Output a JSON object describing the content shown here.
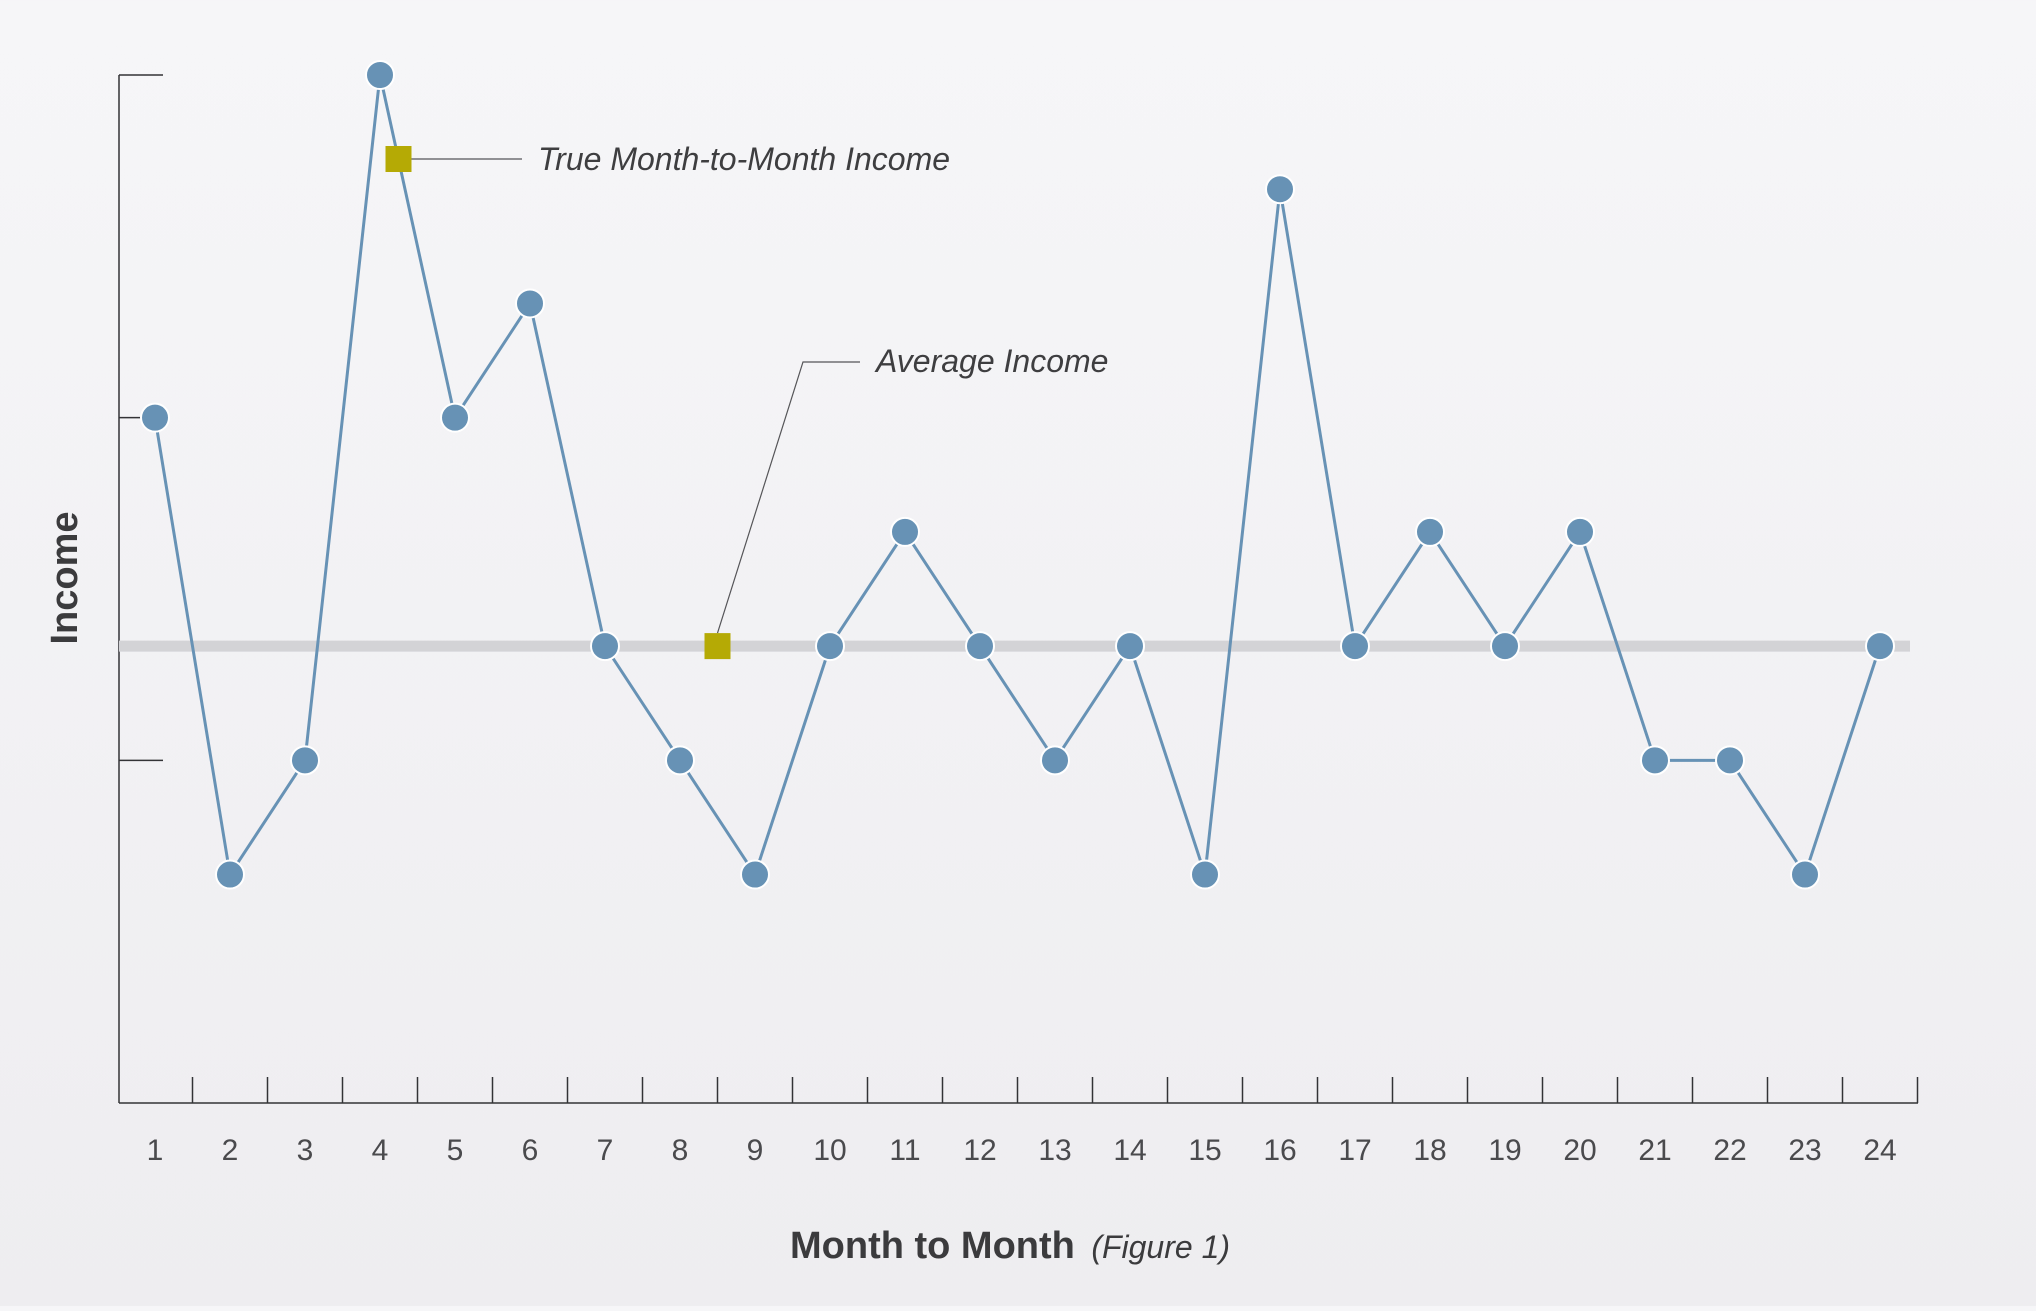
{
  "chart_data": {
    "type": "line",
    "title": "",
    "ylabel": "Income",
    "xlabel": "Month to Month",
    "xlabel_note": "(Figure 1)",
    "x": [
      1,
      2,
      3,
      4,
      5,
      6,
      7,
      8,
      9,
      10,
      11,
      12,
      13,
      14,
      15,
      16,
      17,
      18,
      19,
      20,
      21,
      22,
      23,
      24
    ],
    "x_tick_labels": [
      "1",
      "2",
      "3",
      "4",
      "5",
      "6",
      "7",
      "8",
      "9",
      "10",
      "11",
      "12",
      "13",
      "14",
      "15",
      "16",
      "17",
      "18",
      "19",
      "20",
      "21",
      "22",
      "23",
      "24"
    ],
    "series": [
      {
        "name": "True Month-to-Month Income",
        "values": [
          6,
          2,
          3,
          9,
          6,
          7,
          4,
          3,
          2,
          4,
          5,
          4,
          3,
          4,
          2,
          8,
          4,
          5,
          4,
          5,
          3,
          3,
          2,
          4
        ],
        "color": "#6792b5"
      },
      {
        "name": "Average Income",
        "values": [
          4,
          4,
          4,
          4,
          4,
          4,
          4,
          4,
          4,
          4,
          4,
          4,
          4,
          4,
          4,
          4,
          4,
          4,
          4,
          4,
          4,
          4,
          4,
          4
        ],
        "color": "#d3d3d6"
      }
    ],
    "legend_marker_color": "#b5aa05",
    "ylim": [
      0,
      9
    ],
    "y_ticks_shown": [
      3,
      6,
      9
    ],
    "y_tick_labels_shown": false,
    "grid": false,
    "legend": "inline annotations"
  }
}
